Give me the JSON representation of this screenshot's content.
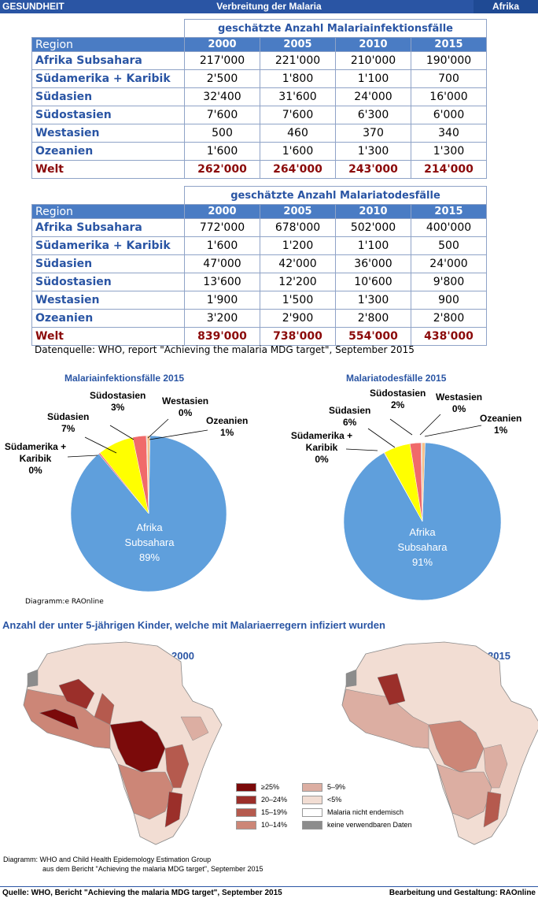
{
  "header": {
    "left": "GESUNDHEIT",
    "center": "Verbreitung der Malaria",
    "right": "Afrika"
  },
  "chart_data": [
    {
      "type": "table",
      "title": "geschätzte Anzahl Malariainfektionsfälle",
      "columns": [
        "Region",
        "2000",
        "2005",
        "2010",
        "2015"
      ],
      "rows": [
        [
          "Afrika Subsahara",
          "217'000",
          "221'000",
          "210'000",
          "190'000"
        ],
        [
          "Südamerika + Karibik",
          "2'500",
          "1'800",
          "1'100",
          "700"
        ],
        [
          "Südasien",
          "32'400",
          "31'600",
          "24'000",
          "16'000"
        ],
        [
          "Südostasien",
          "7'600",
          "7'600",
          "6'300",
          "6'000"
        ],
        [
          "Westasien",
          "500",
          "460",
          "370",
          "340"
        ],
        [
          "Ozeanien",
          "1'600",
          "1'600",
          "1'300",
          "1'300"
        ],
        [
          "Welt",
          "262'000",
          "264'000",
          "243'000",
          "214'000"
        ]
      ]
    },
    {
      "type": "table",
      "title": "geschätzte Anzahl Malariatodesfälle",
      "columns": [
        "Region",
        "2000",
        "2005",
        "2010",
        "2015"
      ],
      "rows": [
        [
          "Afrika Subsahara",
          "772'000",
          "678'000",
          "502'000",
          "400'000"
        ],
        [
          "Südamerika + Karibik",
          "1'600",
          "1'200",
          "1'100",
          "500"
        ],
        [
          "Südasien",
          "47'000",
          "42'000",
          "36'000",
          "24'000"
        ],
        [
          "Südostasien",
          "13'600",
          "12'200",
          "10'600",
          "9'800"
        ],
        [
          "Westasien",
          "1'900",
          "1'500",
          "1'300",
          "900"
        ],
        [
          "Ozeanien",
          "3'200",
          "2'900",
          "2'800",
          "2'800"
        ],
        [
          "Welt",
          "839'000",
          "738'000",
          "554'000",
          "438'000"
        ]
      ]
    },
    {
      "type": "pie",
      "title": "Malariainfektionsfälle 2015",
      "slices": [
        {
          "label": "Afrika Subsahara",
          "pct": "89%",
          "value": 190000,
          "color": "#5f9fdc"
        },
        {
          "label": "Südamerika + Karibik",
          "pct": "0%",
          "value": 700,
          "color": "#f07070"
        },
        {
          "label": "Südasien",
          "pct": "7%",
          "value": 16000,
          "color": "#ffff00"
        },
        {
          "label": "Südostasien",
          "pct": "3%",
          "value": 6000,
          "color": "#f06a6a"
        },
        {
          "label": "Westasien",
          "pct": "0%",
          "value": 340,
          "color": "#b0b0b0"
        },
        {
          "label": "Ozeanien",
          "pct": "1%",
          "value": 1300,
          "color": "#f5c08a"
        }
      ]
    },
    {
      "type": "pie",
      "title": "Malariatodesfälle 2015",
      "slices": [
        {
          "label": "Afrika Subsahara",
          "pct": "91%",
          "value": 400000,
          "color": "#5f9fdc"
        },
        {
          "label": "Südamerika + Karibik",
          "pct": "0%",
          "value": 500,
          "color": "#f07070"
        },
        {
          "label": "Südasien",
          "pct": "6%",
          "value": 24000,
          "color": "#ffff00"
        },
        {
          "label": "Südostasien",
          "pct": "2%",
          "value": 9800,
          "color": "#f06a6a"
        },
        {
          "label": "Westasien",
          "pct": "0%",
          "value": 900,
          "color": "#b0b0b0"
        },
        {
          "label": "Ozeanien",
          "pct": "1%",
          "value": 2800,
          "color": "#f5c08a"
        }
      ]
    }
  ],
  "source_line": "Datenquelle: WHO, report  \"Achieving the malaria MDG target\", September 2015",
  "pie_credit": "Diagramm:e RAOnline",
  "map_section": {
    "heading": "Anzahl der unter 5-jährigen Kinder, welche mit Malariaerregern infiziert wurden",
    "year_left": "2000",
    "year_right": "2015",
    "legend": [
      {
        "label": "≥25%",
        "color": "#7b0a0a"
      },
      {
        "label": "20–24%",
        "color": "#9b2f2a"
      },
      {
        "label": "15–19%",
        "color": "#b55a4e"
      },
      {
        "label": "10–14%",
        "color": "#cc8677"
      },
      {
        "label": "5–9%",
        "color": "#dcaea2"
      },
      {
        "label": "<5%",
        "color": "#f2ddd3"
      },
      {
        "label": "Malaria nicht endemisch",
        "color": "#ffffff"
      },
      {
        "label": "keine verwendbaren Daten",
        "color": "#8c8c8c"
      }
    ],
    "credit_line1": "Diagramm:  WHO and  Child Health Epidemology Estimation Group",
    "credit_line2": "aus dem Bericht   \"Achieving the malaria MDG target\", September 2015"
  },
  "footer": {
    "left": "Quelle: WHO, Bericht  \"Achieving the malaria MDG target\", September 2015",
    "right": "Bearbeitung und Gestaltung: RAOnline"
  }
}
